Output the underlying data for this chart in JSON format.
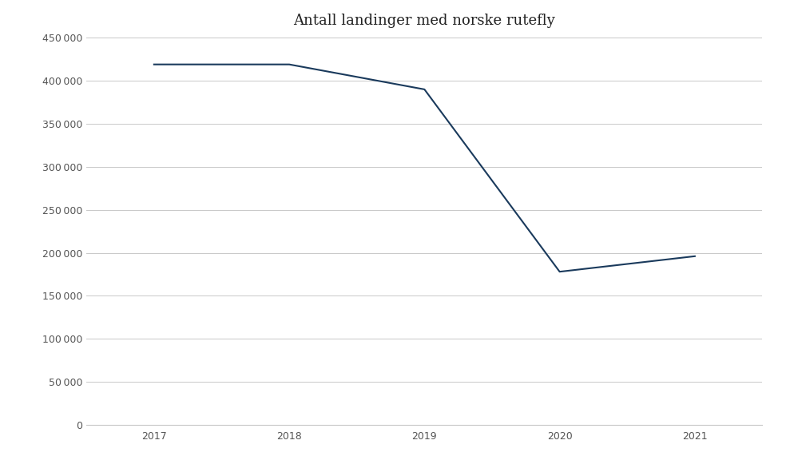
{
  "title": "Antall landinger med norske rutefly",
  "x_values": [
    2017,
    2018,
    2019,
    2020,
    2021
  ],
  "y_values": [
    419000,
    419000,
    390000,
    178000,
    196000
  ],
  "line_color": "#1a3a5c",
  "line_width": 1.5,
  "background_color": "#ffffff",
  "grid_color": "#c8c8c8",
  "ylim": [
    0,
    450000
  ],
  "yticks": [
    0,
    50000,
    100000,
    150000,
    200000,
    250000,
    300000,
    350000,
    400000,
    450000
  ],
  "xticks": [
    2017,
    2018,
    2019,
    2020,
    2021
  ],
  "title_fontsize": 13,
  "tick_fontsize": 9,
  "tick_color": "#555555"
}
